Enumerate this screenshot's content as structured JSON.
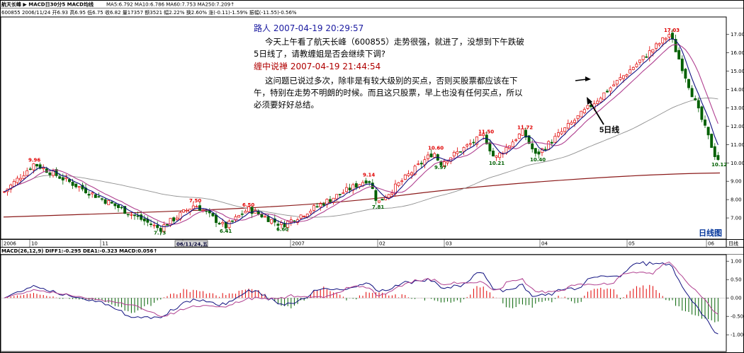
{
  "header": {
    "title": "航天长峰 ▶ MACD日30分5 MACD均线",
    "ma_line": "MA5:6.792 MA10:6.786 MA60:7.753 MA250:7.209↑",
    "quote_line": "600855 2006/11/24 开6.93 高6.95 低6.75 收6.82 量17357 额3521 幅2.22% 换2.60% 涨(-0.11)-1.59% 振幅(-11.55)-0.56%"
  },
  "post": {
    "author1": "路人 2007-04-19 20:29:57",
    "body1_lines": [
      "今天上午看了航天长峰（600855）走势很强，就进了，没想到下午跌破",
      "5日线了，请教缠姐是否会继续下调?"
    ],
    "author2": "缠中说禅 2007-04-19 21:44:54",
    "body2_lines": [
      "这问题已说过多次，除非是有较大级别的买点，否则买股票都应该在下",
      "午，特别在走势不明朗的时候。而且这只股票，早上也没有任何买点，所以",
      "必须要好好总结。"
    ]
  },
  "annotation": {
    "label": "5日线"
  },
  "panel_label": "日线图",
  "date_label": "06/11/24,五",
  "right_unit": "日线",
  "macd_header": "MACD(26,12,9)  DIFF1:-0.295  DEA1:-0.323  MACD:0.056↑",
  "colors": {
    "up": "#e00000",
    "down": "#006000",
    "ma5": "#101080",
    "ma10": "#b04090",
    "ma60": "#909090",
    "ma250": "#8b1a1a"
  },
  "chart_data": [
    {
      "type": "candlestick",
      "title": "",
      "ylim": [
        6.0,
        17.8
      ],
      "y_ticks": [
        "17.00",
        "16.00",
        "15.00",
        "14.00",
        "13.00",
        "12.00",
        "11.00",
        "10.00",
        "9.00",
        "8.00",
        "7.00"
      ],
      "x_labels": [
        "2006",
        "10",
        "11",
        "12",
        "2007",
        "02",
        "03",
        "04",
        "05",
        "06"
      ],
      "price_annotations": [
        "9.96",
        "7.73",
        "7.50",
        "6.41",
        "6.50",
        "6.60",
        "9.14",
        "7.81",
        "10.60",
        "9.97",
        "11.50",
        "10.21",
        "11.72",
        "10.40",
        "17.03",
        "10.12"
      ],
      "key_points": [
        {
          "label": "9.96",
          "value": 9.96,
          "type": "high"
        },
        {
          "label": "6.41",
          "value": 6.41,
          "type": "low"
        },
        {
          "label": "7.73",
          "value": 7.73,
          "type": "high"
        },
        {
          "label": "6.50",
          "value": 6.5,
          "type": "low"
        },
        {
          "label": "7.50",
          "value": 7.5,
          "type": "high"
        },
        {
          "label": "6.60",
          "value": 6.6,
          "type": "low"
        },
        {
          "label": "9.14",
          "value": 9.14,
          "type": "high"
        },
        {
          "label": "7.81",
          "value": 7.81,
          "type": "low"
        },
        {
          "label": "10.60",
          "value": 10.6,
          "type": "high"
        },
        {
          "label": "9.97",
          "value": 9.97,
          "type": "low"
        },
        {
          "label": "11.50",
          "value": 11.5,
          "type": "high"
        },
        {
          "label": "10.21",
          "value": 10.21,
          "type": "low"
        },
        {
          "label": "11.72",
          "value": 11.72,
          "type": "high"
        },
        {
          "label": "10.40",
          "value": 10.4,
          "type": "low"
        },
        {
          "label": "17.03",
          "value": 17.03,
          "type": "high"
        },
        {
          "label": "10.12",
          "value": 10.12,
          "type": "low"
        }
      ]
    },
    {
      "type": "bar",
      "title": "MACD(26,12,9)",
      "ylim": [
        -1.4,
        1.1
      ],
      "y_ticks": [
        "1.00",
        "0.50",
        "0.00",
        "-0.50",
        "-1.00"
      ],
      "series": [
        {
          "name": "DIFF1",
          "value": -0.295
        },
        {
          "name": "DEA1",
          "value": -0.323
        },
        {
          "name": "MACD",
          "value": 0.056
        }
      ]
    }
  ]
}
